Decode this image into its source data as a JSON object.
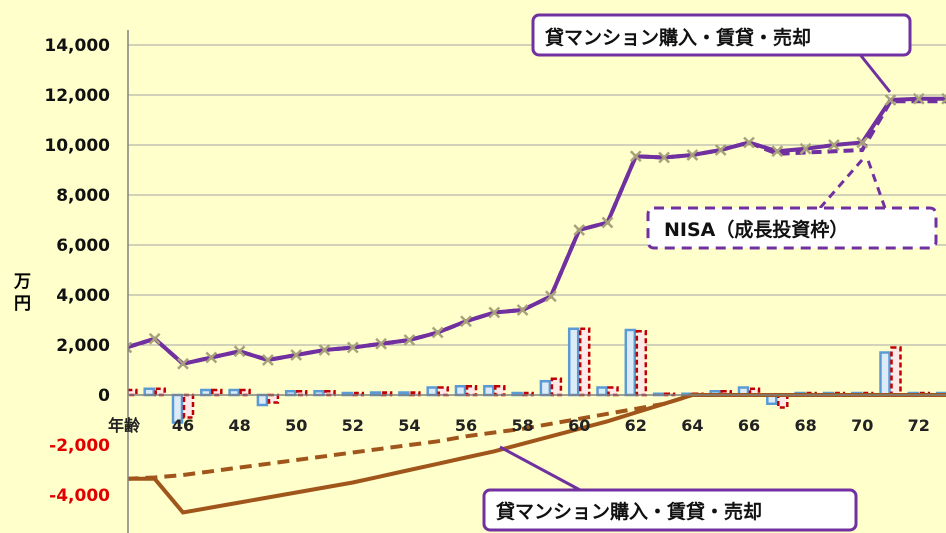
{
  "chart_data": {
    "type": "bar+line",
    "ylabel": "万円",
    "xlabel": "年齢",
    "ylim": [
      -5000,
      15000
    ],
    "xlim": [
      44.5,
      73
    ],
    "yticks": [
      -4000,
      -2000,
      0,
      2000,
      4000,
      6000,
      8000,
      10000,
      12000,
      14000
    ],
    "ytick_labels": [
      "-4,000",
      "-2,000",
      "0",
      "2,000",
      "4,000",
      "6,000",
      "8,000",
      "10,000",
      "12,000",
      "14,000"
    ],
    "xticks": [
      46,
      48,
      50,
      52,
      54,
      56,
      58,
      60,
      62,
      64,
      66,
      68,
      70,
      72
    ],
    "xtick_labels": [
      "46",
      "48",
      "50",
      "52",
      "54",
      "56",
      "58",
      "60",
      "62",
      "64",
      "66",
      "68",
      "70",
      "72"
    ],
    "grid": "horizontal",
    "colors": {
      "background": "#FFFFCC",
      "asset_line": "#7030A0",
      "loan_line": "#A0561B",
      "bar_a": "#5B9BD5",
      "bar_b": "#C00000",
      "negative_tick": "#E00000"
    },
    "ages": [
      44,
      45,
      46,
      47,
      48,
      49,
      50,
      51,
      52,
      53,
      54,
      55,
      56,
      57,
      58,
      59,
      60,
      61,
      62,
      63,
      64,
      65,
      66,
      67,
      68,
      69,
      70,
      71,
      72,
      73
    ],
    "series": [
      {
        "style": "line-solid-markers",
        "values": [
          1900,
          2250,
          1250,
          1500,
          1750,
          1400,
          1600,
          1800,
          1900,
          2050,
          2200,
          2500,
          2950,
          3300,
          3400,
          3950,
          6600,
          6900,
          9550,
          9500,
          9600,
          9800,
          10100,
          9750,
          9850,
          10000,
          10100,
          11800,
          11850,
          11850
        ]
      },
      {
        "style": "line-dashed",
        "values": [
          1900,
          2250,
          1250,
          1500,
          1750,
          1400,
          1600,
          1800,
          1900,
          2050,
          2200,
          2500,
          2950,
          3300,
          3400,
          3950,
          6600,
          6900,
          9550,
          9500,
          9600,
          9800,
          10100,
          9650,
          9700,
          9750,
          9800,
          11750,
          11750,
          11750
        ]
      },
      {
        "style": "line-solid-brown",
        "values": [
          -3350,
          -3350,
          -4700,
          -4500,
          -4300,
          -4100,
          -3900,
          -3700,
          -3500,
          -3250,
          -3000,
          -2750,
          -2500,
          -2250,
          -1950,
          -1650,
          -1350,
          -1050,
          -700,
          -350,
          0,
          0,
          0,
          0,
          0,
          0,
          0,
          0,
          0,
          0
        ]
      },
      {
        "style": "line-dashed-brown",
        "values": [
          -3350,
          -3300,
          -3200,
          -3050,
          -2900,
          -2750,
          -2600,
          -2450,
          -2300,
          -2150,
          -2000,
          -1850,
          -1650,
          -1500,
          -1350,
          -1150,
          -950,
          -750,
          -550,
          -350,
          0,
          0,
          0,
          0,
          0,
          0,
          0,
          0,
          0,
          0
        ]
      },
      {
        "style": "bar-blue",
        "values": [
          200,
          250,
          -1100,
          200,
          200,
          -400,
          150,
          150,
          80,
          100,
          100,
          300,
          350,
          350,
          80,
          550,
          2650,
          300,
          2600,
          50,
          50,
          150,
          300,
          -350,
          80,
          80,
          80,
          1700,
          80,
          80
        ]
      },
      {
        "style": "bar-red-dashed",
        "values": [
          200,
          250,
          -900,
          200,
          200,
          -300,
          150,
          150,
          80,
          100,
          100,
          300,
          350,
          350,
          80,
          650,
          2650,
          300,
          2550,
          50,
          50,
          150,
          250,
          -500,
          80,
          80,
          80,
          1900,
          80,
          80
        ]
      }
    ],
    "annotations": {
      "top_callout": "貸マンション購入・賃貸・売却",
      "nisa_callout": "NISA（成長投資枠）",
      "bottom_callout": "貸マンション購入・賃貸・売却"
    }
  }
}
